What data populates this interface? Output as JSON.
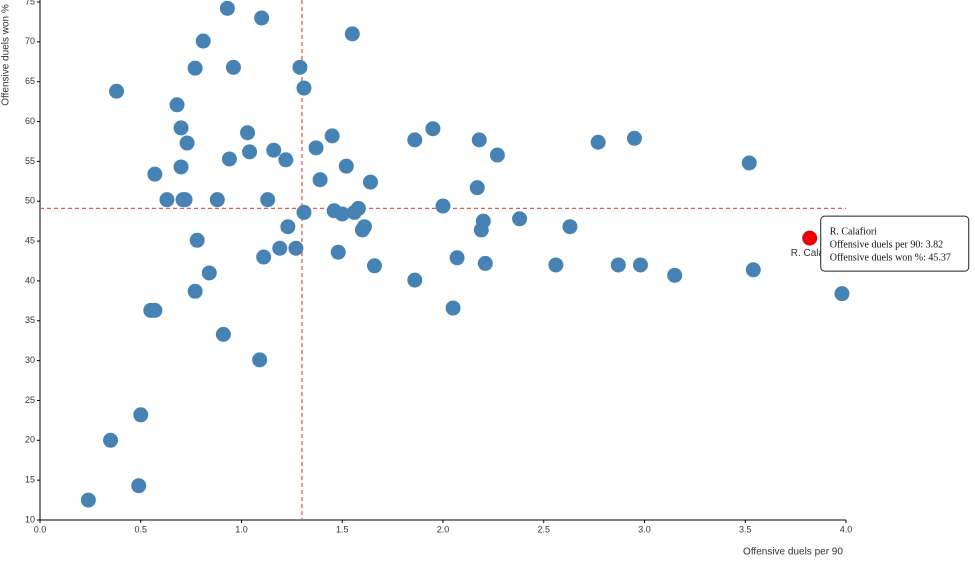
{
  "chart_data": {
    "type": "scatter",
    "x_label": "Offensive duels per 90",
    "y_label": "Offensive duels won %",
    "x": [
      0.24,
      0.49,
      0.35,
      0.5,
      0.38,
      0.55,
      0.57,
      0.57,
      0.63,
      0.68,
      0.7,
      0.7,
      0.71,
      0.72,
      0.73,
      0.77,
      0.77,
      0.78,
      0.81,
      0.84,
      0.88,
      0.91,
      0.93,
      0.94,
      0.96,
      1.03,
      1.04,
      1.09,
      1.1,
      1.11,
      1.13,
      1.16,
      1.19,
      1.22,
      1.23,
      1.27,
      1.29,
      1.31,
      1.31,
      1.37,
      1.39,
      1.45,
      1.46,
      1.48,
      1.5,
      1.52,
      1.55,
      1.56,
      1.58,
      1.6,
      1.61,
      1.64,
      1.66,
      1.86,
      1.86,
      1.95,
      2.0,
      2.05,
      2.07,
      2.17,
      2.18,
      2.19,
      2.2,
      2.21,
      2.27,
      2.38,
      2.56,
      2.63,
      2.77,
      2.87,
      2.95,
      2.98,
      3.15,
      3.52,
      3.54,
      3.98
    ],
    "values": [
      12.5,
      14.3,
      20,
      23.2,
      63.8,
      36.3,
      36.3,
      53.4,
      50.2,
      62.1,
      59.2,
      54.3,
      50.2,
      50.2,
      57.3,
      66.7,
      38.7,
      45.1,
      70.1,
      41,
      50.2,
      33.3,
      74.2,
      55.3,
      66.8,
      58.6,
      56.2,
      30.1,
      73,
      43,
      50.2,
      56.4,
      44.1,
      55.2,
      46.8,
      44.1,
      66.8,
      64.2,
      48.6,
      56.7,
      52.7,
      58.2,
      48.8,
      43.6,
      48.4,
      54.4,
      71,
      48.6,
      49.1,
      46.4,
      46.8,
      52.4,
      41.9,
      57.7,
      40.1,
      59.1,
      49.4,
      36.6,
      42.9,
      51.7,
      57.7,
      46.4,
      47.5,
      42.2,
      55.8,
      47.8,
      42,
      46.8,
      57.4,
      42,
      57.9,
      42,
      40.7,
      54.8,
      41.4,
      38.4
    ],
    "color": "#4682b4",
    "highlight": {
      "name": "R. Calafiori",
      "x": 3.82,
      "y": 45.37,
      "color": "#ee0000"
    },
    "tooltip": {
      "lines": [
        "Offensive duels per 90: 3.82",
        "Offensive duels won %: 45.37"
      ]
    },
    "reference_lines": {
      "x": 1.3,
      "y": 49.1,
      "color": "#e05a5a"
    },
    "xlim": [
      0,
      4
    ],
    "ylim": [
      10,
      75
    ],
    "xticks": [
      {
        "value": 0,
        "label": "0.0"
      },
      {
        "value": 0.5,
        "label": "0.5"
      },
      {
        "value": 1,
        "label": "1.0"
      },
      {
        "value": 1.5,
        "label": "1.5"
      },
      {
        "value": 2,
        "label": "2.0"
      },
      {
        "value": 2.5,
        "label": "2.5"
      },
      {
        "value": 3,
        "label": "3.0"
      },
      {
        "value": 3.5,
        "label": "3.5"
      },
      {
        "value": 4,
        "label": "4.0"
      }
    ],
    "yticks": [
      10,
      15,
      20,
      25,
      30,
      35,
      40,
      45,
      50,
      55,
      60,
      65,
      70,
      75
    ]
  }
}
